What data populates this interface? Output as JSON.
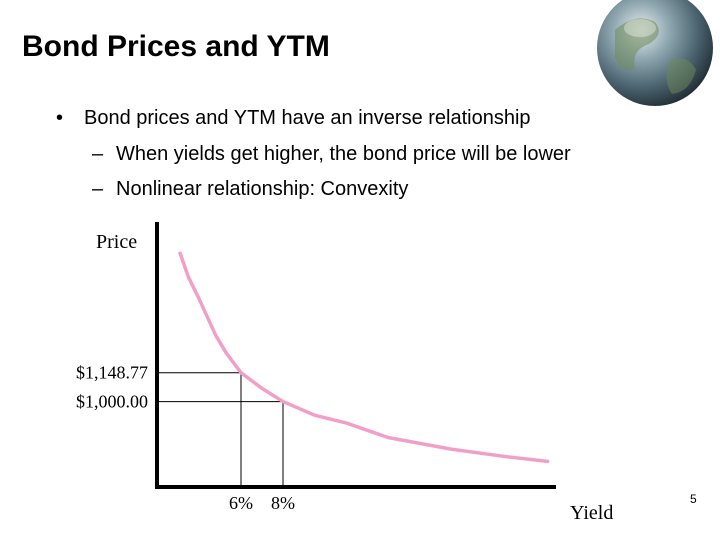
{
  "title": "Bond Prices and YTM",
  "bullets": [
    {
      "text": "Bond prices and YTM have an inverse relationship",
      "sub": [
        "When yields get higher, the bond price will be lower",
        "Nonlinear relationship: Convexity"
      ]
    }
  ],
  "page_number": 5,
  "chart_data": {
    "type": "line",
    "x_label": "Yield",
    "y_label": "Price",
    "x": [
      3.1,
      3.5,
      4,
      4.8,
      5.3,
      6,
      7,
      8,
      9.5,
      11,
      13,
      16,
      18.5,
      20.6
    ],
    "values": [
      1764,
      1640,
      1530,
      1340,
      1250,
      1148.77,
      1068,
      1000,
      930,
      890,
      815,
      755,
      718,
      692
    ],
    "color": "#f0a0c8",
    "xlim": [
      2,
      21
    ],
    "ylim": [
      560,
      1925
    ],
    "xticks": [
      {
        "value": 6,
        "label": "6%"
      },
      {
        "value": 8,
        "label": "8%"
      }
    ],
    "yticks": [
      {
        "value": 1148.77,
        "label": "$1,148.77"
      },
      {
        "value": 1000,
        "label": "$1,000.00"
      }
    ]
  }
}
